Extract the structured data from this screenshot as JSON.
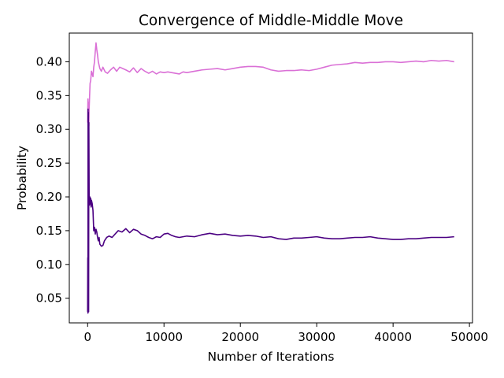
{
  "chart_data": {
    "type": "line",
    "title": "Convergence of Middle-Middle Move",
    "xlabel": "Number of Iterations",
    "ylabel": "Probability",
    "xlim": [
      -2400,
      50400
    ],
    "ylim": [
      0.0135,
      0.4425
    ],
    "xticks": [
      0,
      10000,
      20000,
      30000,
      40000,
      50000
    ],
    "yticks": [
      0.05,
      0.1,
      0.15,
      0.2,
      0.25,
      0.3,
      0.35,
      0.4
    ],
    "xtick_labels": [
      "0",
      "10000",
      "20000",
      "30000",
      "40000",
      "50000"
    ],
    "ytick_labels": [
      "0.05",
      "0.10",
      "0.15",
      "0.20",
      "0.25",
      "0.30",
      "0.35",
      "0.40"
    ],
    "grid": false,
    "series": [
      {
        "color": "#da70d6",
        "x": [
          0,
          40,
          80,
          120,
          160,
          200,
          260,
          320,
          400,
          500,
          600,
          700,
          800,
          900,
          1000,
          1100,
          1200,
          1300,
          1400,
          1600,
          1800,
          2000,
          2300,
          2600,
          3000,
          3400,
          3800,
          4200,
          4600,
          5000,
          5500,
          6000,
          6500,
          7000,
          7500,
          8000,
          8500,
          9000,
          9500,
          10000,
          10500,
          11000,
          11500,
          12000,
          12500,
          13000,
          14000,
          15000,
          16000,
          17000,
          18000,
          19000,
          20000,
          21000,
          22000,
          23000,
          24000,
          25000,
          26000,
          27000,
          28000,
          29000,
          30000,
          31000,
          32000,
          33000,
          34000,
          35000,
          36000,
          37000,
          38000,
          39000,
          40000,
          41000,
          42000,
          43000,
          44000,
          45000,
          46000,
          47000,
          48000
        ],
        "y": [
          0.31,
          0.345,
          0.32,
          0.34,
          0.305,
          0.33,
          0.35,
          0.368,
          0.372,
          0.386,
          0.382,
          0.378,
          0.392,
          0.4,
          0.415,
          0.428,
          0.418,
          0.41,
          0.4,
          0.39,
          0.386,
          0.392,
          0.385,
          0.383,
          0.388,
          0.392,
          0.386,
          0.392,
          0.39,
          0.388,
          0.385,
          0.391,
          0.384,
          0.39,
          0.386,
          0.383,
          0.386,
          0.382,
          0.385,
          0.384,
          0.385,
          0.384,
          0.383,
          0.382,
          0.385,
          0.384,
          0.386,
          0.388,
          0.389,
          0.39,
          0.388,
          0.39,
          0.392,
          0.393,
          0.393,
          0.392,
          0.388,
          0.386,
          0.387,
          0.387,
          0.388,
          0.387,
          0.389,
          0.392,
          0.395,
          0.396,
          0.397,
          0.399,
          0.398,
          0.399,
          0.399,
          0.4,
          0.4,
          0.399,
          0.4,
          0.401,
          0.4,
          0.402,
          0.401,
          0.402,
          0.4
        ]
      },
      {
        "color": "#4b0082",
        "x": [
          0,
          20,
          40,
          60,
          80,
          100,
          130,
          160,
          200,
          250,
          300,
          350,
          400,
          450,
          500,
          600,
          700,
          800,
          900,
          1000,
          1100,
          1200,
          1300,
          1400,
          1500,
          1600,
          1800,
          2000,
          2200,
          2500,
          2800,
          3200,
          3600,
          4000,
          4500,
          5000,
          5500,
          6000,
          6500,
          7000,
          7500,
          8000,
          8500,
          9000,
          9500,
          10000,
          10500,
          11000,
          11500,
          12000,
          13000,
          14000,
          15000,
          16000,
          17000,
          18000,
          19000,
          20000,
          21000,
          22000,
          23000,
          24000,
          25000,
          26000,
          27000,
          28000,
          29000,
          30000,
          31000,
          32000,
          33000,
          34000,
          35000,
          36000,
          37000,
          38000,
          39000,
          40000,
          41000,
          42000,
          43000,
          44000,
          45000,
          46000,
          47000,
          48000
        ],
        "y": [
          0.03,
          0.11,
          0.028,
          0.33,
          0.06,
          0.325,
          0.03,
          0.31,
          0.2,
          0.188,
          0.2,
          0.19,
          0.198,
          0.185,
          0.195,
          0.19,
          0.18,
          0.15,
          0.155,
          0.145,
          0.152,
          0.148,
          0.14,
          0.135,
          0.14,
          0.13,
          0.127,
          0.128,
          0.135,
          0.14,
          0.142,
          0.14,
          0.145,
          0.15,
          0.148,
          0.153,
          0.147,
          0.152,
          0.15,
          0.145,
          0.143,
          0.14,
          0.138,
          0.141,
          0.14,
          0.145,
          0.146,
          0.143,
          0.141,
          0.14,
          0.142,
          0.141,
          0.144,
          0.146,
          0.144,
          0.145,
          0.143,
          0.142,
          0.143,
          0.142,
          0.14,
          0.141,
          0.138,
          0.137,
          0.139,
          0.139,
          0.14,
          0.141,
          0.139,
          0.138,
          0.138,
          0.139,
          0.14,
          0.14,
          0.141,
          0.139,
          0.138,
          0.137,
          0.137,
          0.138,
          0.138,
          0.139,
          0.14,
          0.14,
          0.14,
          0.141
        ]
      }
    ]
  }
}
